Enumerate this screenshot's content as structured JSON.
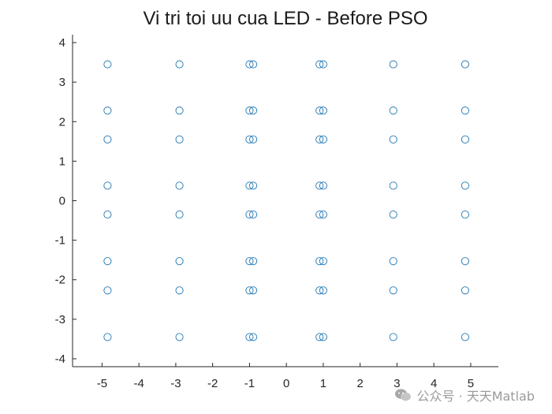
{
  "chart_data": {
    "type": "scatter",
    "title": "Vi tri toi uu cua LED - Before PSO",
    "xlabel": "",
    "ylabel": "",
    "xlim": [
      -5.8,
      5.75
    ],
    "ylim": [
      -4.2,
      4.2
    ],
    "xticks": [
      -5,
      -4,
      -3,
      -2,
      -1,
      0,
      1,
      2,
      3,
      4,
      5
    ],
    "yticks": [
      -4,
      -3,
      -2,
      -1,
      0,
      1,
      2,
      3,
      4
    ],
    "x_columns": [
      -4.85,
      -2.9,
      -1.0,
      -0.9,
      0.9,
      1.0,
      2.9,
      4.85
    ],
    "y_rows": [
      3.45,
      2.28,
      1.55,
      0.38,
      -0.35,
      -1.53,
      -2.27,
      -3.45
    ],
    "marker": "circle-open",
    "marker_color": "#1f77b4",
    "box": "left-bottom axes only",
    "grid": false
  },
  "watermark": {
    "text": "公众号 · 天天Matlab",
    "icon": "wechat-icon"
  }
}
